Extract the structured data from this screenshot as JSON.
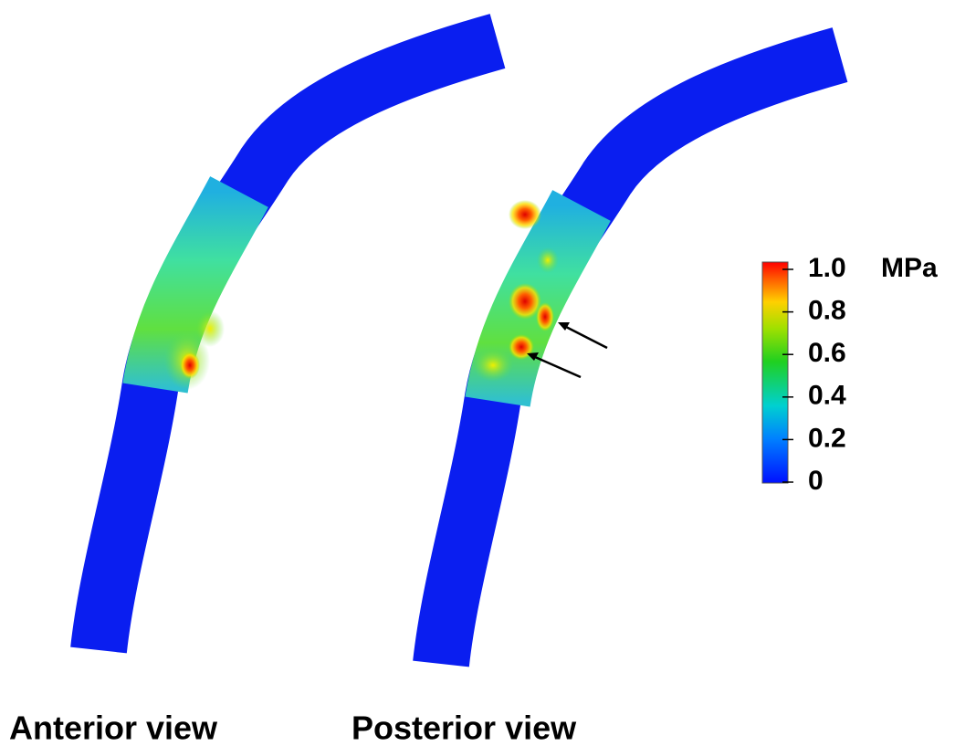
{
  "captions": [
    "Anterior view",
    "Posterior view"
  ],
  "colorbar": {
    "unit": "MPa",
    "range": [
      0,
      1
    ],
    "ticks": [
      0,
      {
        "value": 0.2,
        "label": "0.2"
      },
      {
        "value": 0.4,
        "label": "0.4"
      },
      {
        "value": 0.6,
        "label": "0.6"
      },
      {
        "value": 0.8,
        "label": "0.8"
      },
      {
        "value": 1,
        "label": "1.0"
      }
    ]
  }
}
